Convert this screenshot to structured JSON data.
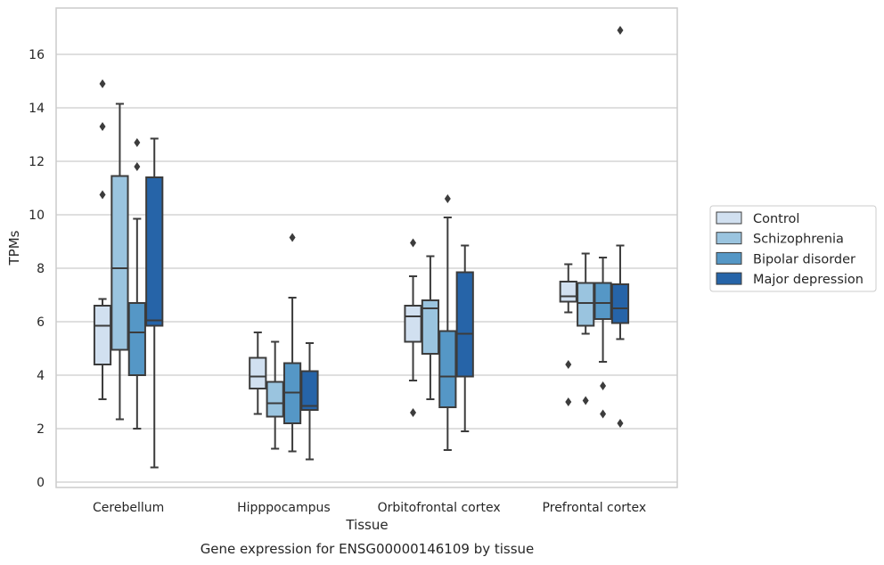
{
  "chart_data": {
    "type": "boxplot",
    "xlabel": "Tissue",
    "ylabel": "TPMs",
    "caption": "Gene expression for ENSG00000146109 by tissue",
    "ylim": [
      -0.2,
      17.8
    ],
    "yticks": [
      0,
      2,
      4,
      6,
      8,
      10,
      12,
      14,
      16
    ],
    "grid": "horizontal",
    "legend_position": "right",
    "categories": [
      "Cerebellum",
      "Hipppocampus",
      "Orbitofrontal cortex",
      "Prefrontal cortex"
    ],
    "series": [
      {
        "name": "Control",
        "color": "#d1e0f0",
        "boxes": [
          {
            "whislo": 3.1,
            "q1": 4.4,
            "med": 5.85,
            "q3": 6.6,
            "whishi": 6.85,
            "fliers": [
              10.75,
              13.3,
              14.9
            ]
          },
          {
            "whislo": 2.55,
            "q1": 3.5,
            "med": 3.95,
            "q3": 4.65,
            "whishi": 5.6,
            "fliers": []
          },
          {
            "whislo": 3.8,
            "q1": 5.25,
            "med": 6.2,
            "q3": 6.6,
            "whishi": 7.7,
            "fliers": [
              2.6,
              8.95
            ]
          },
          {
            "whislo": 6.35,
            "q1": 6.75,
            "med": 6.95,
            "q3": 7.5,
            "whishi": 8.15,
            "fliers": [
              4.4,
              3.0
            ]
          }
        ]
      },
      {
        "name": "Schizophrenia",
        "color": "#9ac4df",
        "boxes": [
          {
            "whislo": 2.35,
            "q1": 4.95,
            "med": 8.0,
            "q3": 11.45,
            "whishi": 14.15,
            "fliers": []
          },
          {
            "whislo": 1.25,
            "q1": 2.45,
            "med": 2.95,
            "q3": 3.75,
            "whishi": 5.25,
            "fliers": []
          },
          {
            "whislo": 3.1,
            "q1": 4.8,
            "med": 6.5,
            "q3": 6.8,
            "whishi": 8.45,
            "fliers": []
          },
          {
            "whislo": 5.55,
            "q1": 5.85,
            "med": 6.7,
            "q3": 7.45,
            "whishi": 8.55,
            "fliers": [
              3.05
            ]
          }
        ]
      },
      {
        "name": "Bipolar disorder",
        "color": "#5597c6",
        "boxes": [
          {
            "whislo": 2.0,
            "q1": 4.0,
            "med": 5.6,
            "q3": 6.7,
            "whishi": 9.85,
            "fliers": [
              11.8,
              12.7
            ]
          },
          {
            "whislo": 1.15,
            "q1": 2.2,
            "med": 3.35,
            "q3": 4.45,
            "whishi": 6.9,
            "fliers": [
              9.15
            ]
          },
          {
            "whislo": 1.2,
            "q1": 2.8,
            "med": 3.95,
            "q3": 5.65,
            "whishi": 9.9,
            "fliers": [
              10.6
            ]
          },
          {
            "whislo": 4.5,
            "q1": 6.1,
            "med": 6.7,
            "q3": 7.45,
            "whishi": 8.4,
            "fliers": [
              3.6,
              2.55
            ]
          }
        ]
      },
      {
        "name": "Major depression",
        "color": "#2664a8",
        "boxes": [
          {
            "whislo": 0.55,
            "q1": 5.85,
            "med": 6.05,
            "q3": 11.4,
            "whishi": 12.85,
            "fliers": []
          },
          {
            "whislo": 0.85,
            "q1": 2.7,
            "med": 2.85,
            "q3": 4.15,
            "whishi": 5.2,
            "fliers": []
          },
          {
            "whislo": 1.9,
            "q1": 3.95,
            "med": 5.55,
            "q3": 7.85,
            "whishi": 8.85,
            "fliers": []
          },
          {
            "whislo": 5.35,
            "q1": 5.95,
            "med": 6.5,
            "q3": 7.4,
            "whishi": 8.85,
            "fliers": [
              16.9,
              2.2
            ]
          }
        ]
      }
    ]
  }
}
